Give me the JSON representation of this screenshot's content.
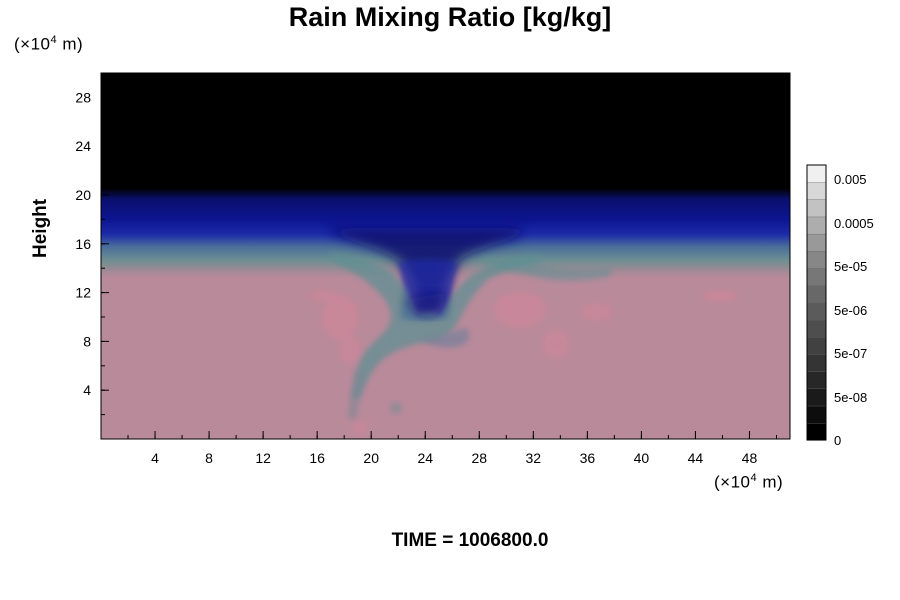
{
  "chart_data": {
    "type": "heatmap",
    "title": "Rain Mixing Ratio [kg/kg]",
    "ylabel": "Height",
    "xlabel": "",
    "x_unit": {
      "prefix": "(×10",
      "exp": "4",
      "suffix": " m)"
    },
    "y_unit": {
      "prefix": "(×10",
      "exp": "4",
      "suffix": " m)"
    },
    "xlim": [
      0,
      51
    ],
    "ylim": [
      0,
      30
    ],
    "x_ticks": [
      4,
      8,
      12,
      16,
      20,
      24,
      28,
      32,
      36,
      40,
      44,
      48
    ],
    "y_ticks": [
      4,
      8,
      12,
      16,
      20,
      24,
      28
    ],
    "x_minor_step": 2,
    "y_minor_step": 2,
    "colorbar": {
      "labels": [
        "0.005",
        "0.0005",
        "5e-05",
        "5e-06",
        "5e-07",
        "5e-08",
        "0"
      ],
      "levels": 16,
      "colors": [
        "#000000",
        "#0d0d0d",
        "#1a1a1a",
        "#272727",
        "#343434",
        "#414141",
        "#4e4e4e",
        "#5b5b5b",
        "#686868",
        "#777777",
        "#878787",
        "#999999",
        "#adadad",
        "#c2c2c2",
        "#d8d8d8",
        "#f0f0f0"
      ]
    },
    "field_colors": {
      "background": "#b98a9a",
      "top": "#000000",
      "navy": "#0a0f6e",
      "blue": "#1c2aa8",
      "teal": "#5f8f93",
      "pink_light": "#d0869a"
    },
    "time_label": "TIME = 1006800.0"
  }
}
